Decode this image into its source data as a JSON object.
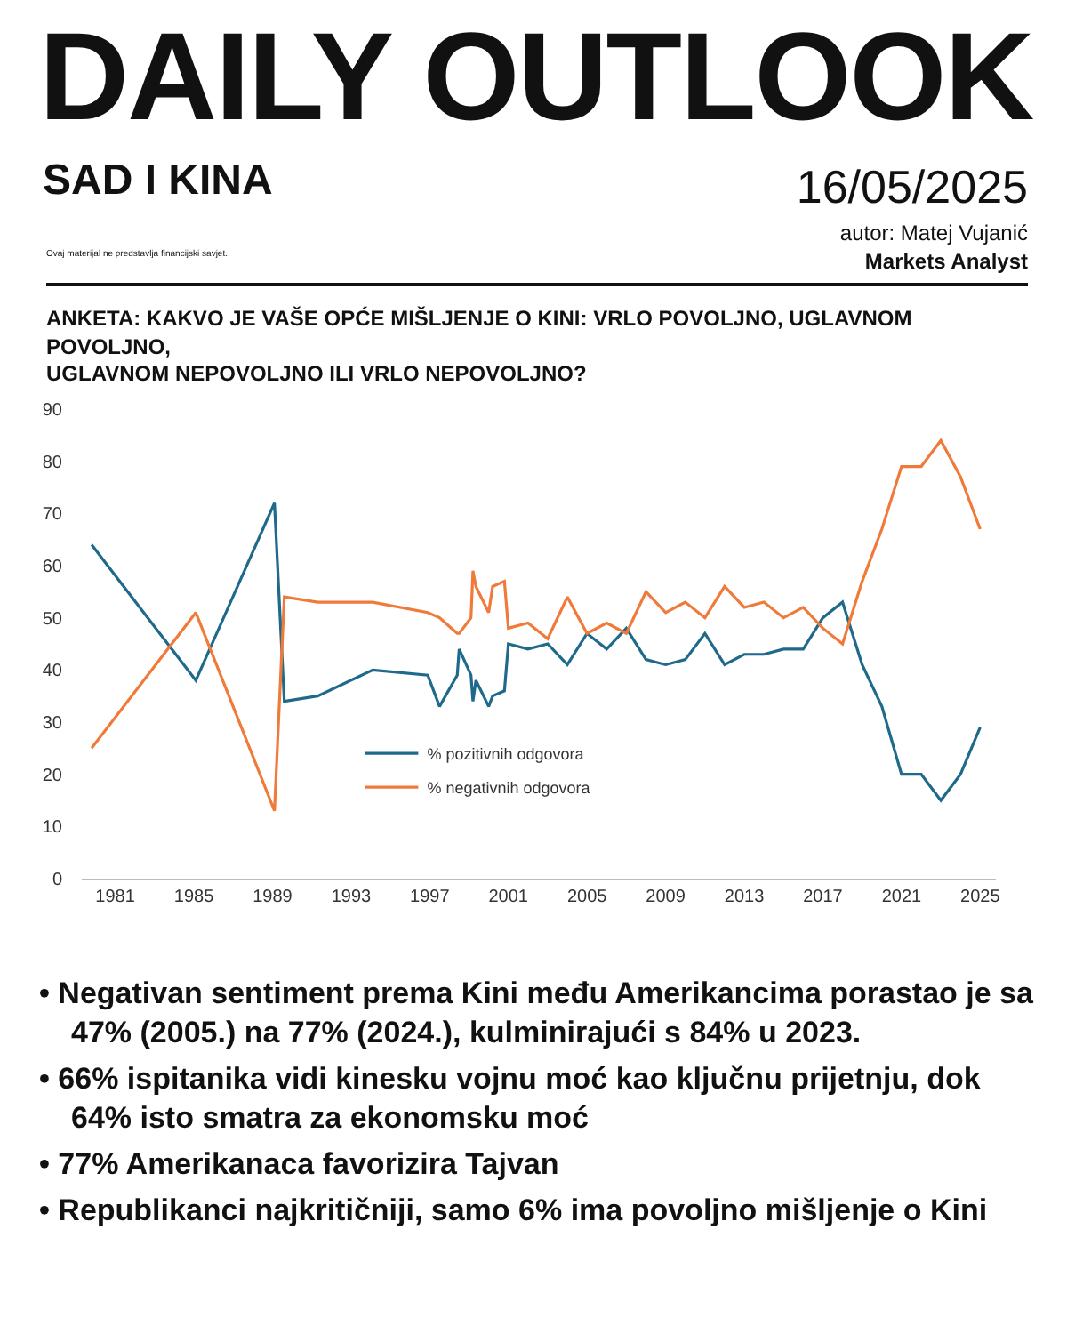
{
  "chart_data": {
    "type": "line",
    "title": "ANKETA: KAKVO JE VAŠE OPĆE MIŠLJENJE O KINI: VRLO POVOLJNO, UGLAVNOM POVOLJNO,\nUGLAVNOM NEPOVOLJNO ILI VRLO NEPOVOLJNO?",
    "x": [
      1979.8,
      1985.1,
      1989.1,
      1989.6,
      1991.3,
      1994.1,
      1996.9,
      1997.5,
      1998.4,
      1998.5,
      1999.1,
      1999.2,
      1999.35,
      2000.0,
      2000.2,
      2000.8,
      2001,
      2002,
      2003,
      2004,
      2005,
      2006,
      2007,
      2008,
      2009,
      2010,
      2011,
      2012,
      2013,
      2014,
      2015,
      2016,
      2017,
      2018,
      2019,
      2020,
      2021,
      2022,
      2023,
      2024,
      2025
    ],
    "series": [
      {
        "name": "% pozitivnih odgovora",
        "color": "#1f6a8a",
        "values": [
          64,
          38,
          72,
          34,
          35,
          40,
          39,
          33,
          39,
          44,
          39,
          34,
          38,
          33,
          35,
          36,
          45,
          44,
          45,
          41,
          47,
          44,
          48,
          42,
          41,
          42,
          47,
          41,
          43,
          43,
          44,
          44,
          50,
          53,
          41,
          33,
          20,
          20,
          15,
          20,
          29
        ]
      },
      {
        "name": "% negativnih odgovora",
        "color": "#f07a3a",
        "values": [
          25,
          51,
          13,
          54,
          53,
          53,
          51,
          50,
          47,
          47,
          50,
          59,
          56,
          51,
          56,
          57,
          48,
          49,
          46,
          54,
          47,
          49,
          47,
          55,
          51,
          53,
          50,
          56,
          52,
          53,
          50,
          52,
          48,
          45,
          57,
          67,
          79,
          79,
          84,
          77,
          67
        ]
      }
    ],
    "xlim": [
      1979.3,
      2025.8
    ],
    "xticks": [
      1981,
      1985,
      1989,
      1993,
      1997,
      2001,
      2005,
      2009,
      2013,
      2017,
      2021,
      2025
    ],
    "ylim": [
      0,
      90
    ],
    "yticks": [
      0,
      10,
      20,
      30,
      40,
      50,
      60,
      70,
      80,
      90
    ],
    "grid": false,
    "legend": "bottom",
    "marker": "none",
    "line_style": "solid",
    "annotations": [
      "DAILY OUTLOOK",
      "SAD I KINA",
      "Ovaj materijal ne predstavlja financijski savjet.",
      "16/05/2025",
      "autor: Matej Vujanić",
      "Markets Analyst",
      "• Negativan sentiment prema Kini među Amerikancima porastao je sa 47% (2005.) na 77% (2024.), kulminirajući s 84% u 2023.",
      "• 66% ispitanika vidi kinesku vojnu moć kao ključnu prijetnju, dok 64% isto smatra za ekonomsku moć",
      "• 77% Amerikanaca favorizira Tajvan",
      "• Republikanci najkritičniji, samo 6% ima povoljno mišljenje o Kini"
    ]
  }
}
